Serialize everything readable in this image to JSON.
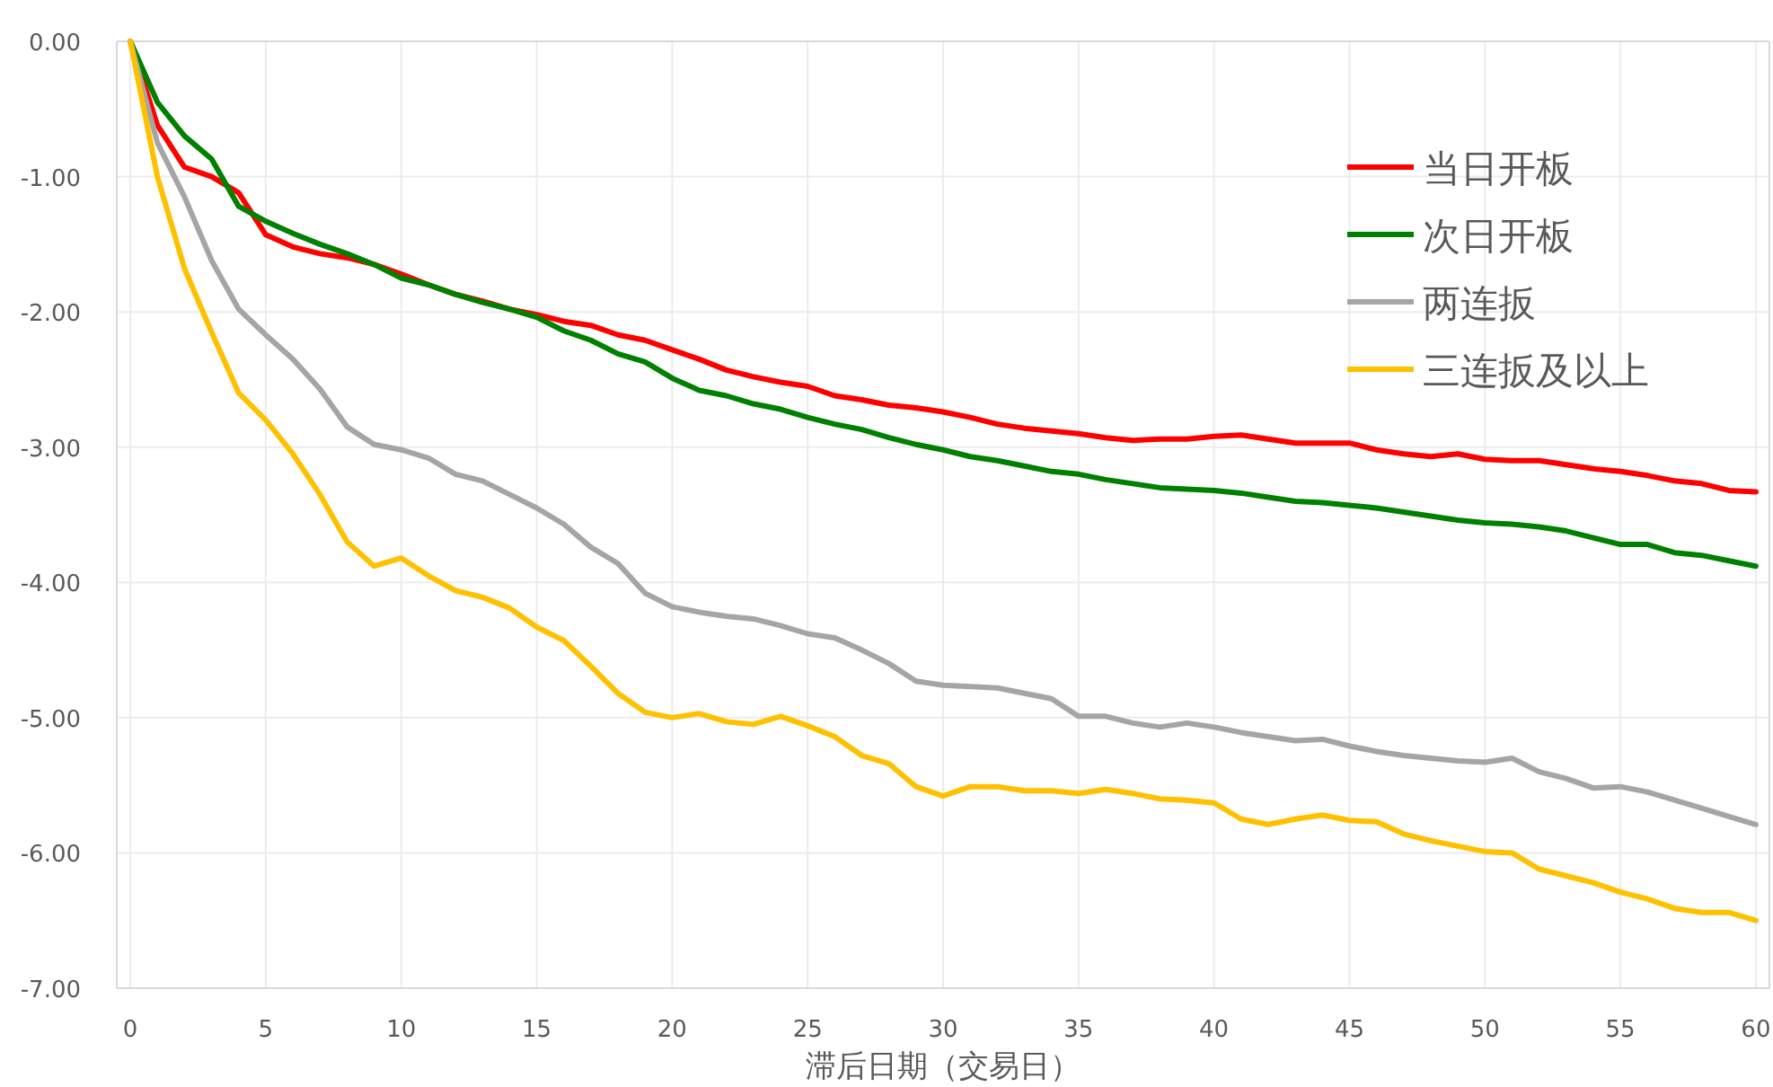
{
  "chart_data": {
    "type": "line",
    "xlabel": "滞后日期（交易日）",
    "x": [
      0,
      1,
      2,
      3,
      4,
      5,
      6,
      7,
      8,
      9,
      10,
      11,
      12,
      13,
      14,
      15,
      16,
      17,
      18,
      19,
      20,
      21,
      22,
      23,
      24,
      25,
      26,
      27,
      28,
      29,
      30,
      31,
      32,
      33,
      34,
      35,
      36,
      37,
      38,
      39,
      40,
      41,
      42,
      43,
      44,
      45,
      46,
      47,
      48,
      49,
      50,
      51,
      52,
      53,
      54,
      55,
      56,
      57,
      58,
      59,
      60
    ],
    "xlim": [
      -0.5,
      60.5
    ],
    "xticks": [
      0,
      5,
      10,
      15,
      20,
      25,
      30,
      35,
      40,
      45,
      50,
      55,
      60
    ],
    "ylim": [
      -7,
      0
    ],
    "yticks": [
      {
        "value": 0,
        "label": "0.00"
      },
      {
        "value": -1,
        "label": "-1.00"
      },
      {
        "value": -2,
        "label": "-2.00"
      },
      {
        "value": -3,
        "label": "-3.00"
      },
      {
        "value": -4,
        "label": "-4.00"
      },
      {
        "value": -5,
        "label": "-5.00"
      },
      {
        "value": -6,
        "label": "-6.00"
      },
      {
        "value": -7,
        "label": "-7.00"
      }
    ],
    "grid": true,
    "legend": "top right",
    "marker": "none",
    "line_style": "solid",
    "series": [
      {
        "name": "当日开板",
        "color": "#ff0000",
        "values": [
          0,
          -0.62,
          -0.93,
          -1.0,
          -1.12,
          -1.43,
          -1.52,
          -1.57,
          -1.6,
          -1.65,
          -1.72,
          -1.8,
          -1.87,
          -1.92,
          -1.98,
          -2.02,
          -2.07,
          -2.1,
          -2.17,
          -2.21,
          -2.28,
          -2.35,
          -2.43,
          -2.48,
          -2.52,
          -2.55,
          -2.62,
          -2.65,
          -2.69,
          -2.71,
          -2.74,
          -2.78,
          -2.83,
          -2.86,
          -2.88,
          -2.9,
          -2.93,
          -2.95,
          -2.94,
          -2.94,
          -2.92,
          -2.91,
          -2.94,
          -2.97,
          -2.97,
          -2.97,
          -3.02,
          -3.05,
          -3.07,
          -3.05,
          -3.09,
          -3.1,
          -3.1,
          -3.13,
          -3.16,
          -3.18,
          -3.21,
          -3.25,
          -3.27,
          -3.32,
          -3.33
        ]
      },
      {
        "name": "次日开板",
        "color": "#008000",
        "values": [
          0,
          -0.45,
          -0.7,
          -0.87,
          -1.22,
          -1.33,
          -1.42,
          -1.5,
          -1.57,
          -1.65,
          -1.75,
          -1.8,
          -1.87,
          -1.93,
          -1.98,
          -2.04,
          -2.14,
          -2.21,
          -2.31,
          -2.37,
          -2.49,
          -2.58,
          -2.62,
          -2.68,
          -2.72,
          -2.78,
          -2.83,
          -2.87,
          -2.93,
          -2.98,
          -3.02,
          -3.07,
          -3.1,
          -3.14,
          -3.18,
          -3.2,
          -3.24,
          -3.27,
          -3.3,
          -3.31,
          -3.32,
          -3.34,
          -3.37,
          -3.4,
          -3.41,
          -3.43,
          -3.45,
          -3.48,
          -3.51,
          -3.54,
          -3.56,
          -3.57,
          -3.59,
          -3.62,
          -3.67,
          -3.72,
          -3.72,
          -3.78,
          -3.8,
          -3.84,
          -3.88
        ]
      },
      {
        "name": "两连扳",
        "color": "#a5a5a5",
        "values": [
          0,
          -0.75,
          -1.15,
          -1.62,
          -1.98,
          -2.17,
          -2.35,
          -2.57,
          -2.85,
          -2.98,
          -3.02,
          -3.08,
          -3.2,
          -3.25,
          -3.35,
          -3.45,
          -3.57,
          -3.74,
          -3.86,
          -4.08,
          -4.18,
          -4.22,
          -4.25,
          -4.27,
          -4.32,
          -4.38,
          -4.41,
          -4.5,
          -4.6,
          -4.73,
          -4.76,
          -4.77,
          -4.78,
          -4.82,
          -4.86,
          -4.99,
          -4.99,
          -5.04,
          -5.07,
          -5.04,
          -5.07,
          -5.11,
          -5.14,
          -5.17,
          -5.16,
          -5.21,
          -5.25,
          -5.28,
          -5.3,
          -5.32,
          -5.33,
          -5.3,
          -5.4,
          -5.45,
          -5.52,
          -5.51,
          -5.55,
          -5.61,
          -5.67,
          -5.73,
          -5.79
        ]
      },
      {
        "name": "三连扳及以上",
        "color": "#ffc000",
        "values": [
          0,
          -1.0,
          -1.68,
          -2.15,
          -2.6,
          -2.8,
          -3.05,
          -3.35,
          -3.7,
          -3.88,
          -3.82,
          -3.95,
          -4.06,
          -4.11,
          -4.19,
          -4.33,
          -4.43,
          -4.62,
          -4.82,
          -4.96,
          -5.0,
          -4.97,
          -5.03,
          -5.05,
          -4.99,
          -5.06,
          -5.14,
          -5.28,
          -5.34,
          -5.51,
          -5.58,
          -5.51,
          -5.51,
          -5.54,
          -5.54,
          -5.56,
          -5.53,
          -5.56,
          -5.6,
          -5.61,
          -5.63,
          -5.75,
          -5.79,
          -5.75,
          -5.72,
          -5.76,
          -5.77,
          -5.86,
          -5.91,
          -5.95,
          -5.99,
          -6.0,
          -6.12,
          -6.17,
          -6.22,
          -6.29,
          -6.34,
          -6.41,
          -6.44,
          -6.44,
          -6.5
        ]
      }
    ]
  }
}
